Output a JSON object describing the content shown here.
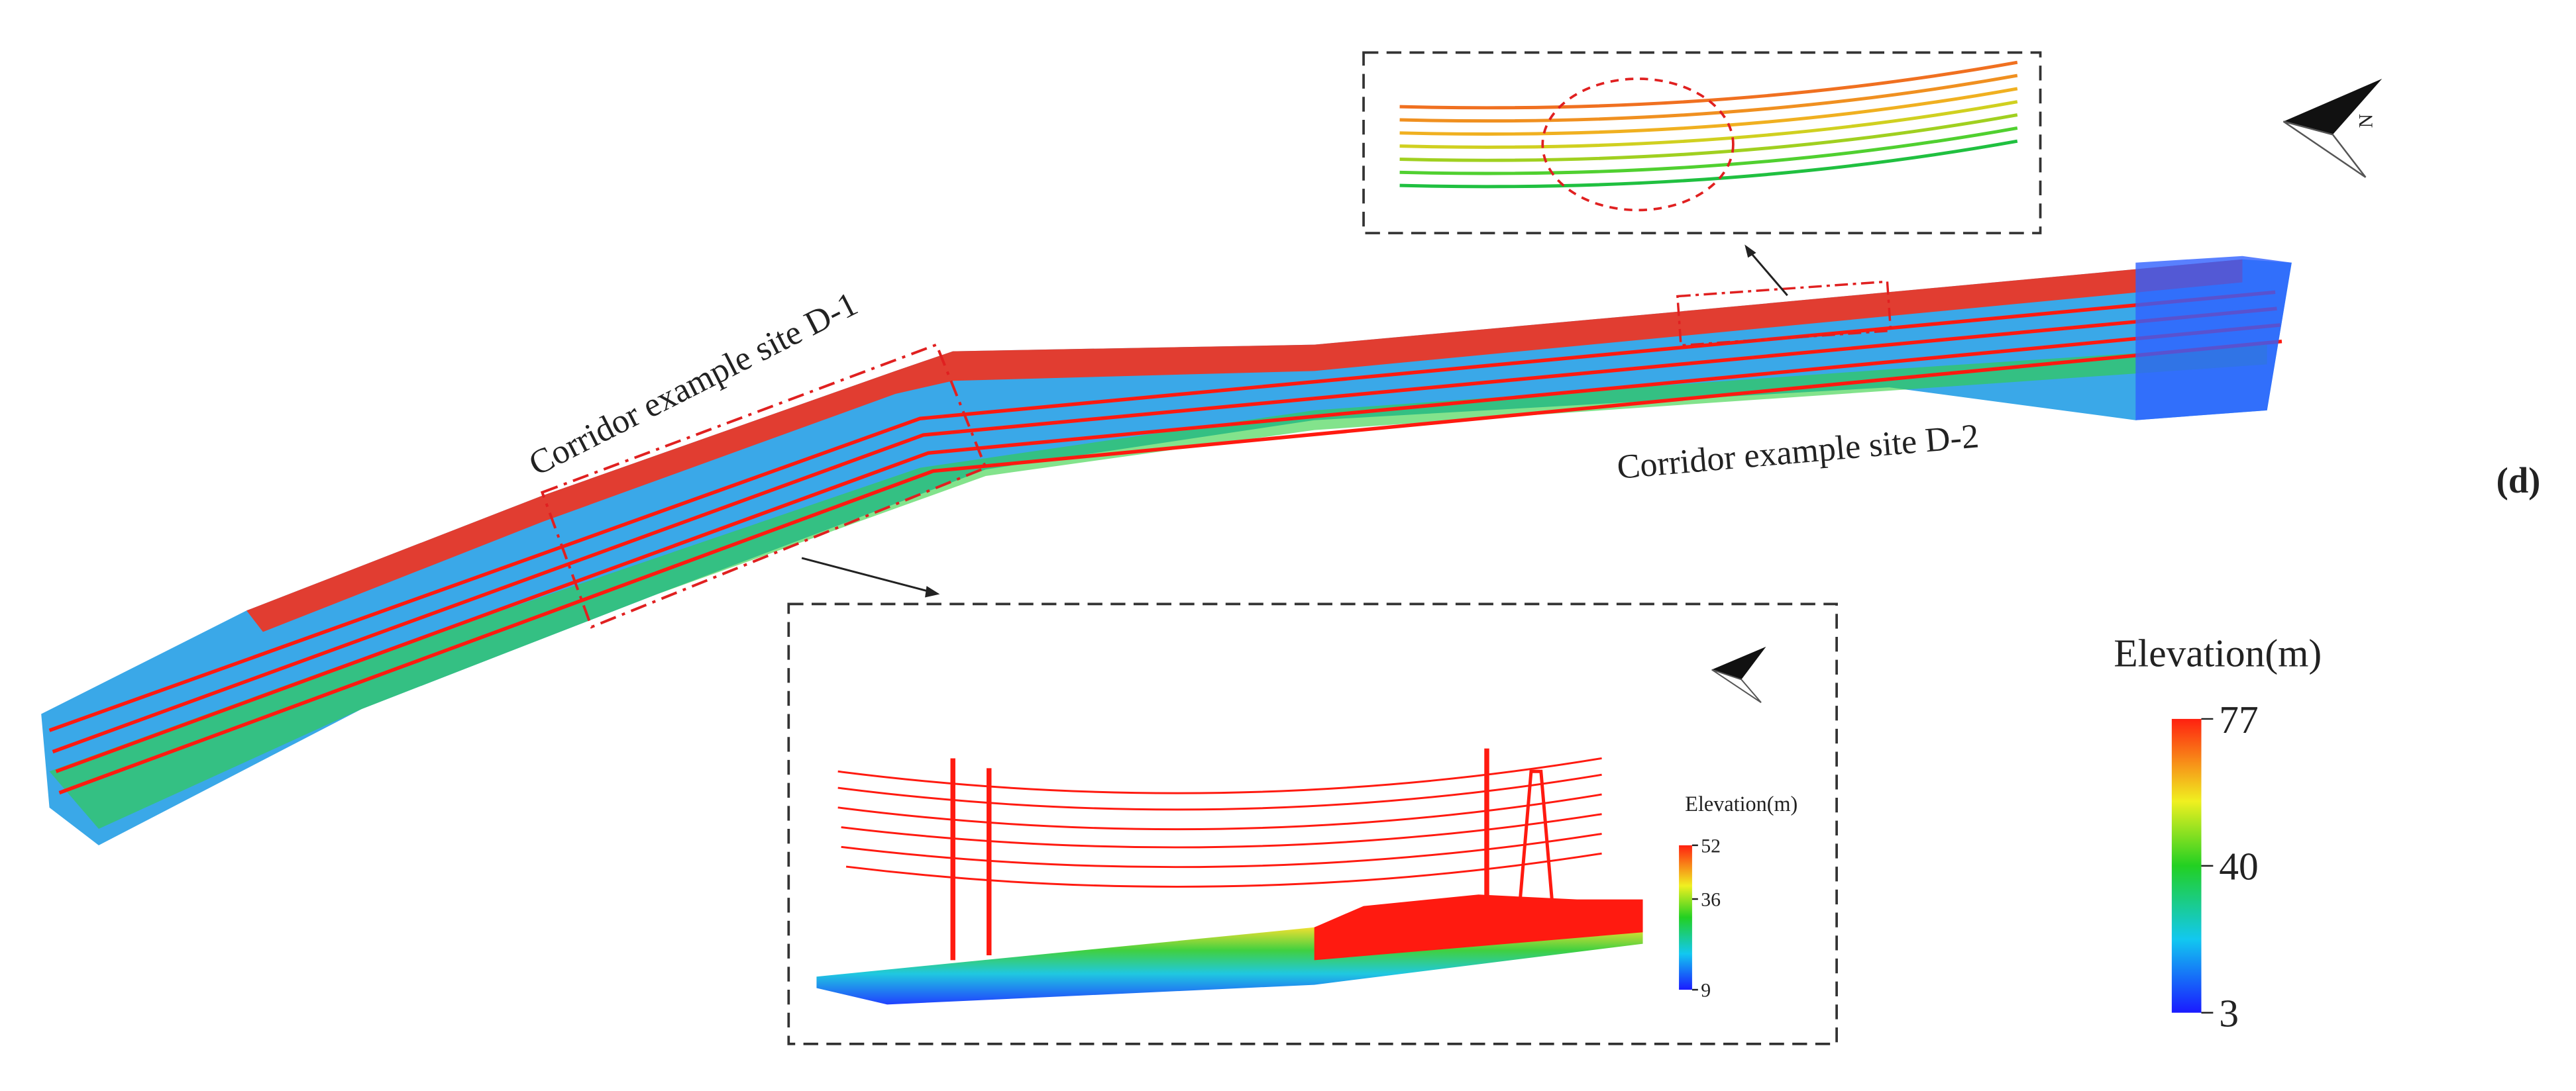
{
  "figure": {
    "panel_label": "(d)",
    "annotations": [
      "Corridor example site D-1",
      "Corridor example site D-2"
    ],
    "colorbar": {
      "title": "Elevation(m)",
      "ticks": [
        3,
        40,
        77
      ]
    },
    "inset_colorbar": {
      "title": "Elevation(m)",
      "ticks": [
        9,
        36,
        52
      ]
    }
  }
}
